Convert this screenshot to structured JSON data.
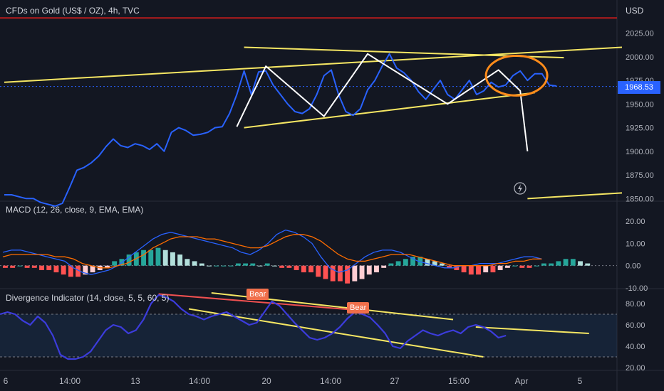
{
  "chart_data": [
    {
      "type": "line",
      "title": "CFDs on Gold (US$ / OZ), 4h, TVC",
      "currency": "USD",
      "last_price": "1968.53",
      "yticks": [
        "2025.00",
        "2000.00",
        "1975.00",
        "1950.00",
        "1925.00",
        "1900.00",
        "1875.00",
        "1850.00"
      ],
      "ylim": [
        1848,
        2060
      ],
      "resistance_level": 2041,
      "series": [
        {
          "values": [
            1854,
            1854,
            1852,
            1850,
            1850,
            1846,
            1844,
            1842,
            1845,
            1862,
            1880,
            1883,
            1888,
            1895,
            1905,
            1913,
            1906,
            1904,
            1908,
            1906,
            1902,
            1908,
            1900,
            1920,
            1925,
            1922,
            1917,
            1918,
            1920,
            1925,
            1926,
            1940,
            1960,
            1985,
            1960,
            1984,
            1985,
            1970,
            1960,
            1950,
            1942,
            1940,
            1945,
            1960,
            1980,
            1986,
            1960,
            1942,
            1938,
            1945,
            1965,
            1975,
            1990,
            2003,
            1988,
            1983,
            1975,
            1963,
            1955,
            1965,
            1975,
            1960,
            1955,
            1965,
            1975,
            1960,
            1964,
            1973,
            1968,
            1970,
            1980,
            1985,
            1975,
            1982,
            1982,
            1970,
            1969
          ]
        }
      ],
      "drawings": {
        "white_zigzag": [
          [
            32,
            1926
          ],
          [
            36,
            1990
          ],
          [
            44,
            1937
          ],
          [
            50,
            2003
          ],
          [
            61,
            1950
          ],
          [
            68,
            1986
          ],
          [
            71,
            1964
          ],
          [
            72,
            1900
          ]
        ],
        "yellow_trendlines": [
          [
            [
              0,
              1973
            ],
            [
              85,
              2010
            ]
          ],
          [
            [
              33,
              2010
            ],
            [
              77,
              1999
            ]
          ],
          [
            [
              33,
              1925
            ],
            [
              73,
              1962
            ]
          ],
          [
            [
              72,
              1850
            ],
            [
              85,
              1856
            ]
          ]
        ]
      }
    },
    {
      "type": "bar",
      "title": "MACD (12, 26, close, 9, EMA, EMA)",
      "yticks": [
        "20.00",
        "10.00",
        "0.00",
        "-10.00"
      ],
      "ylim": [
        -10,
        28
      ],
      "histogram": [
        -1,
        -1,
        0,
        -1,
        -1,
        -2,
        -2,
        -3,
        -4,
        -5,
        -5,
        -4,
        -3,
        -2,
        -1,
        2,
        3,
        5,
        6,
        7,
        7,
        8,
        7,
        6,
        5,
        3,
        2,
        1,
        0,
        0,
        0,
        0,
        1,
        1,
        1,
        0,
        1,
        0,
        -1,
        -1,
        -2,
        -3,
        -3,
        -5,
        -6,
        -7,
        -7,
        -8,
        -7,
        -6,
        -4,
        -3,
        -1,
        1,
        2,
        3,
        4,
        4,
        3,
        2,
        1,
        -1,
        -2,
        -3,
        -4,
        -4,
        -3,
        -3,
        -2,
        -1,
        0,
        -1,
        -1,
        0,
        1,
        1,
        2,
        3,
        3,
        2,
        1
      ],
      "series": [
        {
          "values": [
            6,
            7,
            7,
            6,
            5,
            4,
            3,
            2,
            -1,
            -3,
            -4,
            -3,
            -2,
            0,
            3,
            6,
            9,
            12,
            14,
            15,
            14,
            13,
            12,
            11,
            10,
            9,
            8,
            6,
            5,
            7,
            10,
            14,
            16,
            15,
            13,
            10,
            4,
            -1,
            -3,
            -2,
            1,
            4,
            6,
            7,
            7,
            6,
            4,
            2,
            1,
            0,
            -1,
            -1,
            0,
            0,
            1,
            1,
            1,
            2,
            3,
            4,
            4,
            3
          ]
        },
        {
          "values": [
            4,
            5,
            5,
            5,
            5,
            5,
            4,
            4,
            3,
            1,
            0,
            -1,
            -1,
            0,
            1,
            3,
            5,
            8,
            10,
            12,
            13,
            13,
            13,
            12,
            12,
            11,
            10,
            9,
            8,
            8,
            9,
            11,
            13,
            14,
            14,
            13,
            11,
            8,
            5,
            3,
            2,
            2,
            3,
            4,
            5,
            5,
            5,
            4,
            3,
            2,
            1,
            0,
            0,
            0,
            0,
            0,
            1,
            1,
            2,
            2,
            3,
            3
          ]
        }
      ]
    },
    {
      "type": "line",
      "title": "Divergence Indicator (14, close, 5, 5, 60, 5)",
      "yticks": [
        "80.00",
        "60.00",
        "40.00",
        "20.00"
      ],
      "ylim": [
        18,
        92
      ],
      "levels": [
        70,
        30
      ],
      "bear_labels": [
        "Bear",
        "Bear"
      ],
      "series": [
        {
          "values": [
            70,
            72,
            70,
            64,
            60,
            68,
            62,
            50,
            32,
            28,
            28,
            30,
            35,
            45,
            55,
            60,
            58,
            52,
            55,
            65,
            80,
            88,
            86,
            82,
            75,
            70,
            68,
            65,
            68,
            70,
            72,
            68,
            64,
            60,
            62,
            72,
            82,
            78,
            70,
            62,
            55,
            48,
            46,
            48,
            52,
            58,
            66,
            72,
            70,
            67,
            60,
            52,
            40,
            38,
            45,
            50,
            55,
            52,
            50,
            53,
            55,
            52,
            58,
            60,
            58,
            54,
            48,
            50
          ]
        }
      ],
      "trendlines": [
        [
          [
            28,
            90
          ],
          [
            60,
            65
          ]
        ],
        [
          [
            25,
            75
          ],
          [
            64,
            30
          ]
        ],
        [
          [
            63,
            58
          ],
          [
            78,
            52
          ]
        ]
      ]
    }
  ],
  "xaxis": {
    "labels": [
      "6",
      "14:00",
      "13",
      "14:00",
      "20",
      "14:00",
      "27",
      "15:00",
      "Apr",
      "5"
    ]
  }
}
